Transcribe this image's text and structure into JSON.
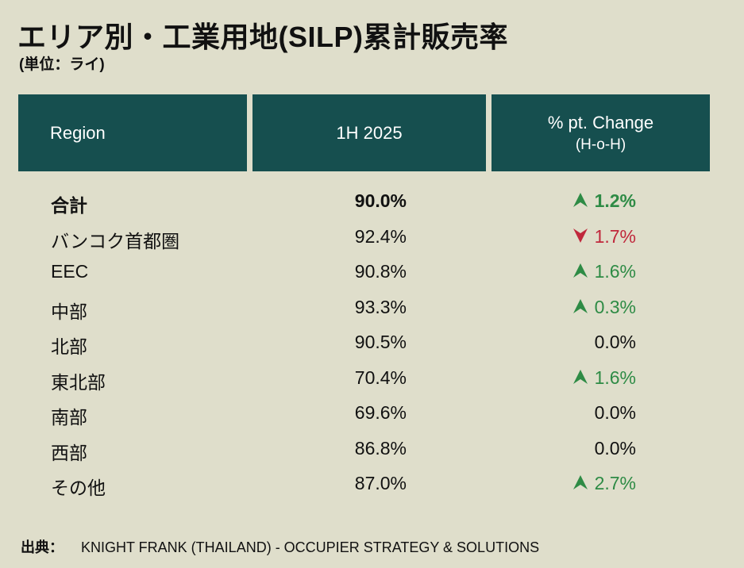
{
  "title": "エリア別・工業用地(SILP)累計販売率",
  "subtitle": "(単位：ライ)",
  "table": {
    "headers": {
      "region": "Region",
      "period": "1H 2025",
      "change_line1": "% pt. Change",
      "change_line2": "(H-o-H)"
    },
    "header_color": "#164f4f",
    "up_color": "#2e8b45",
    "down_color": "#c0283c",
    "rows": [
      {
        "region": "合計",
        "value": "90.0%",
        "change": "1.2%",
        "direction": "up",
        "bold": true
      },
      {
        "region": "バンコク首都圏",
        "value": "92.4%",
        "change": "1.7%",
        "direction": "down",
        "bold": false
      },
      {
        "region": "EEC",
        "value": "90.8%",
        "change": "1.6%",
        "direction": "up",
        "bold": false
      },
      {
        "region": "中部",
        "value": "93.3%",
        "change": "0.3%",
        "direction": "up",
        "bold": false
      },
      {
        "region": "北部",
        "value": "90.5%",
        "change": "0.0%",
        "direction": "flat",
        "bold": false
      },
      {
        "region": "東北部",
        "value": "70.4%",
        "change": "1.6%",
        "direction": "up",
        "bold": false
      },
      {
        "region": "南部",
        "value": "69.6%",
        "change": "0.0%",
        "direction": "flat",
        "bold": false
      },
      {
        "region": "西部",
        "value": "86.8%",
        "change": "0.0%",
        "direction": "flat",
        "bold": false
      },
      {
        "region": "その他",
        "value": "87.0%",
        "change": "2.7%",
        "direction": "up",
        "bold": false
      }
    ]
  },
  "source": {
    "label": "出典：",
    "text": "KNIGHT FRANK (THAILAND) - OCCUPIER STRATEGY & SOLUTIONS"
  }
}
